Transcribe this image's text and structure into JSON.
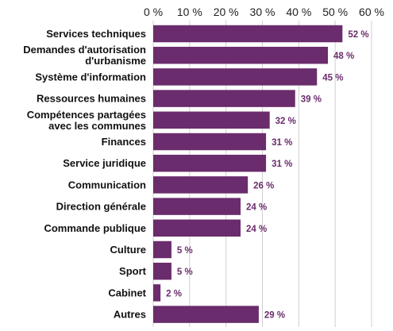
{
  "chart_data": {
    "type": "bar",
    "orientation": "horizontal",
    "categories": [
      "Services techniques",
      "Demandes d'autorisation d'urbanisme",
      "Système d'information",
      "Ressources humaines",
      "Compétences partagées avec les communes",
      "Finances",
      "Service juridique",
      "Communication",
      "Direction générale",
      "Commande publique",
      "Culture",
      "Sport",
      "Cabinet",
      "Autres"
    ],
    "category_lines": [
      [
        "Services techniques"
      ],
      [
        "Demandes d'autorisation",
        "d'urbanisme"
      ],
      [
        "Système d'information"
      ],
      [
        "Ressources humaines"
      ],
      [
        "Compétences partagées",
        "avec les communes"
      ],
      [
        "Finances"
      ],
      [
        "Service juridique"
      ],
      [
        "Communication"
      ],
      [
        "Direction générale"
      ],
      [
        "Commande publique"
      ],
      [
        "Culture"
      ],
      [
        "Sport"
      ],
      [
        "Cabinet"
      ],
      [
        "Autres"
      ]
    ],
    "values": [
      52,
      48,
      45,
      39,
      32,
      31,
      31,
      26,
      24,
      24,
      5,
      5,
      2,
      29
    ],
    "value_labels": [
      "52 %",
      "48 %",
      "45 %",
      "39 %",
      "32 %",
      "31 %",
      "31 %",
      "26 %",
      "24 %",
      "24 %",
      "5 %",
      "5 %",
      "2 %",
      "29 %"
    ],
    "x_ticks": [
      0,
      10,
      20,
      30,
      40,
      50,
      60
    ],
    "x_tick_labels": [
      "0 %",
      "10 %",
      "20 %",
      "30 %",
      "40 %",
      "50 %",
      "60 %"
    ],
    "xlim": [
      0,
      60
    ],
    "title": "",
    "xlabel": "",
    "ylabel": "",
    "grid": true,
    "axis_position": "top",
    "legend": "none",
    "bar_color": "#6a2c6c",
    "label_color": "#6a2c6c"
  }
}
